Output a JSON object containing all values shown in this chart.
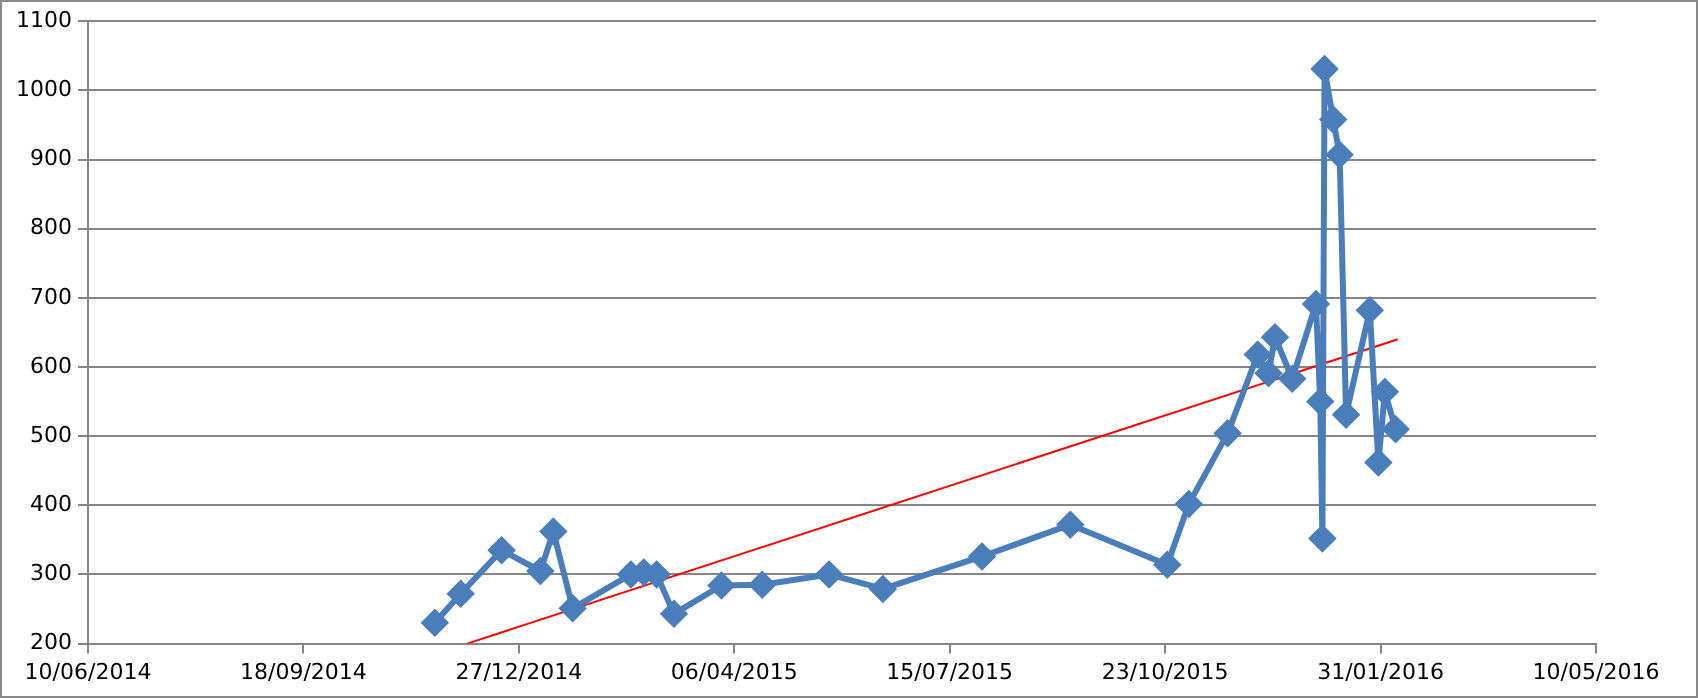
{
  "chart_data": {
    "type": "line",
    "x": [
      "2014-11-18",
      "2014-11-30",
      "2014-12-19",
      "2015-01-06",
      "2015-01-12",
      "2015-01-21",
      "2015-02-17",
      "2015-02-23",
      "2015-03-01",
      "2015-03-09",
      "2015-03-31",
      "2015-04-19",
      "2015-05-20",
      "2015-06-14",
      "2015-07-30",
      "2015-09-09",
      "2015-10-24",
      "2015-11-03",
      "2015-11-21",
      "2015-12-05",
      "2015-12-10",
      "2015-12-13",
      "2015-12-21",
      "2016-01-01",
      "2016-01-03",
      "2016-01-04",
      "2016-01-05",
      "2016-01-09",
      "2016-01-12",
      "2016-01-15",
      "2016-01-26",
      "2016-01-30",
      "2016-02-02",
      "2016-02-07"
    ],
    "series": [
      {
        "color": "#4a7ebb",
        "marker": "diamond",
        "values": [
          230,
          272,
          335,
          305,
          362,
          251,
          300,
          303,
          300,
          243,
          284,
          285,
          300,
          279,
          326,
          372,
          314,
          402,
          504,
          618,
          591,
          643,
          583,
          691,
          550,
          352,
          1031,
          958,
          907,
          531,
          682,
          462,
          564,
          510
        ]
      },
      {
        "type": "line",
        "color": "#ff0000",
        "marker": "none",
        "x": [
          "2014-12-03",
          "2016-02-08"
        ],
        "values": [
          200,
          640
        ]
      }
    ],
    "xlim": [
      "2014-06-10",
      "2016-05-10"
    ],
    "xticks": [
      {
        "value": "2014-06-10",
        "label": "10/06/2014"
      },
      {
        "value": "2014-09-18",
        "label": "18/09/2014"
      },
      {
        "value": "2014-12-27",
        "label": "27/12/2014"
      },
      {
        "value": "2015-04-06",
        "label": "06/04/2015"
      },
      {
        "value": "2015-07-15",
        "label": "15/07/2015"
      },
      {
        "value": "2015-10-23",
        "label": "23/10/2015"
      },
      {
        "value": "2016-01-31",
        "label": "31/01/2016"
      },
      {
        "value": "2016-05-10",
        "label": "10/05/2016"
      }
    ],
    "ylim": [
      200,
      1100
    ],
    "yticks": [
      200,
      300,
      400,
      500,
      600,
      700,
      800,
      900,
      1000,
      1100
    ],
    "grid": "y",
    "legend": false
  }
}
